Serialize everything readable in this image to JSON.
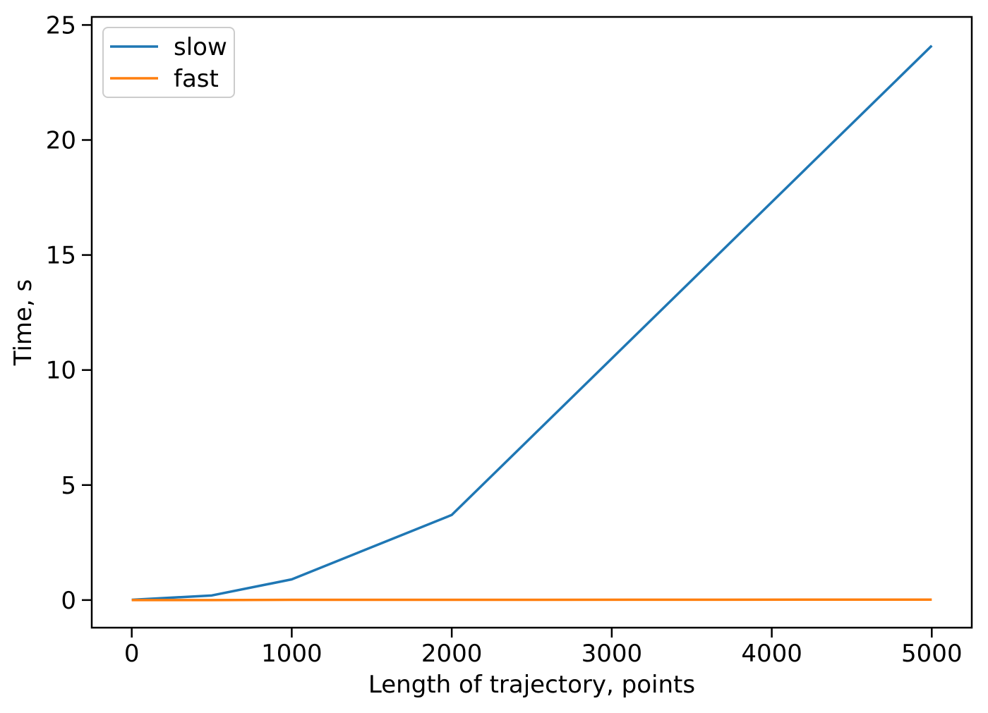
{
  "figure": {
    "background": "#ffffff"
  },
  "chart_data": {
    "type": "line",
    "title": "",
    "xlabel": "Length of trajectory, points",
    "ylabel": "Time, s",
    "x": [
      0,
      500,
      1000,
      2000,
      5000
    ],
    "series": [
      {
        "name": "slow",
        "color": "#1f77b4",
        "values": [
          0.01,
          0.2,
          0.9,
          3.7,
          24.1
        ]
      },
      {
        "name": "fast",
        "color": "#ff7f0e",
        "values": [
          0.0,
          0.0,
          0.01,
          0.01,
          0.02
        ]
      }
    ],
    "xticks": [
      0,
      1000,
      2000,
      3000,
      4000,
      5000
    ],
    "yticks": [
      0,
      5,
      10,
      15,
      20,
      25
    ],
    "xlim": [
      -250,
      5250
    ],
    "ylim": [
      -1.2,
      25.35
    ],
    "grid": false,
    "legend": {
      "position": "upper left",
      "entries": [
        "slow",
        "fast"
      ],
      "border_color": "#cccccc",
      "background": "#ffffff"
    },
    "axis_color": "#000000",
    "tick_label_color": "#000000"
  }
}
